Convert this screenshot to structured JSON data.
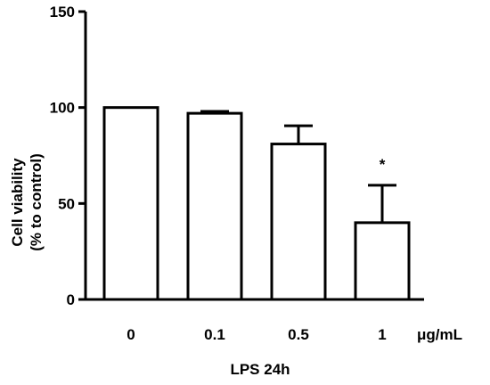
{
  "chart_data": {
    "type": "bar",
    "title": "",
    "xlabel": "LPS 24h",
    "ylabel_lines": [
      "Cell viability",
      "(% to control)"
    ],
    "x_unit": "μg/mL",
    "categories": [
      "0",
      "0.1",
      "0.5",
      "1"
    ],
    "values": [
      100,
      97,
      81,
      40
    ],
    "error_upper": [
      0,
      1,
      9.5,
      19.5
    ],
    "annotations": [
      "",
      "",
      "",
      "*"
    ],
    "ylim": [
      0,
      150
    ],
    "yticks": [
      0,
      50,
      100,
      150
    ],
    "ytick_labels": [
      "0",
      "50",
      "100",
      "150"
    ],
    "grid": false,
    "bar_fill": "#ffffff",
    "bar_stroke": "#000000"
  }
}
